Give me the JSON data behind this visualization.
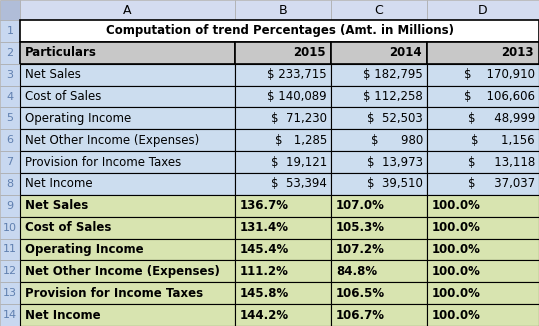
{
  "title": "Computation of trend Percentages (Amt. in Millions)",
  "col_headers": [
    "A",
    "B",
    "C",
    "D"
  ],
  "row_numbers": [
    "1",
    "2",
    "3",
    "4",
    "5",
    "6",
    "7",
    "8",
    "9",
    "10",
    "11",
    "12",
    "13",
    "14"
  ],
  "header_row": [
    "Particulars",
    "2015",
    "2014",
    "2013"
  ],
  "data_rows": [
    [
      "Net Sales",
      "$ 233,715",
      "$ 182,795",
      "$    170,910"
    ],
    [
      "Cost of Sales",
      "$ 140,089",
      "$ 112,258",
      "$    106,606"
    ],
    [
      "Operating Income",
      "$  71,230",
      "$  52,503",
      "$     48,999"
    ],
    [
      "Net Other Income (Expenses)",
      "$   1,285",
      "$      980",
      "$      1,156"
    ],
    [
      "Provision for Income Taxes",
      "$  19,121",
      "$  13,973",
      "$     13,118"
    ],
    [
      "Net Income",
      "$  53,394",
      "$  39,510",
      "$     37,037"
    ]
  ],
  "pct_rows": [
    [
      "Net Sales",
      "136.7%",
      "107.0%",
      "100.0%"
    ],
    [
      "Cost of Sales",
      "131.4%",
      "105.3%",
      "100.0%"
    ],
    [
      "Operating Income",
      "145.4%",
      "107.2%",
      "100.0%"
    ],
    [
      "Net Other Income (Expenses)",
      "111.2%",
      "84.8%",
      "100.0%"
    ],
    [
      "Provision for Income Taxes",
      "145.8%",
      "106.5%",
      "100.0%"
    ],
    [
      "Net Income",
      "144.2%",
      "106.7%",
      "100.0%"
    ]
  ],
  "color_col_hdr_bg": "#D4DCF0",
  "color_col_hdr_corner": "#B0BDD8",
  "color_title_bg": "#FFFFFF",
  "color_header_bg": "#C8C8C8",
  "color_data_bg": "#CCDDEF",
  "color_pct_bg": "#D8E4B0",
  "color_row_num_bg": "#C8D8F0",
  "color_border": "#888888",
  "color_thick_border": "#000000",
  "title_fontsize": 8.5,
  "body_fontsize": 8.5,
  "col_hdr_fontsize": 9,
  "row_num_fontsize": 8
}
